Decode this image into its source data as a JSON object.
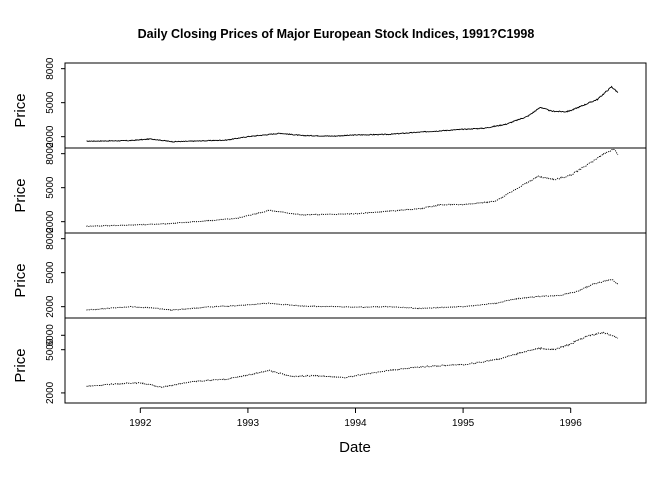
{
  "chart_data": {
    "type": "line",
    "title": "Daily Closing Prices of Major European Stock Indices, 1991?C1998",
    "xlabel": "Date",
    "x_ticks": [
      "1992",
      "1993",
      "1994",
      "1995",
      "1996"
    ],
    "x_tick_values": [
      1992,
      1993,
      1994,
      1995,
      1996
    ],
    "xlim": [
      1991.3,
      1996.7
    ],
    "panels": [
      {
        "ylabel": "Price",
        "ylim": [
          1000,
          8500
        ],
        "y_ticks": [
          "2000",
          "5000",
          "8000"
        ],
        "y_tick_values": [
          2000,
          5000,
          8000
        ],
        "line_style": "solid",
        "points": [
          [
            1991.5,
            1600
          ],
          [
            1991.9,
            1650
          ],
          [
            1992.1,
            1800
          ],
          [
            1992.3,
            1550
          ],
          [
            1992.8,
            1700
          ],
          [
            1993.0,
            2000
          ],
          [
            1993.3,
            2300
          ],
          [
            1993.5,
            2100
          ],
          [
            1993.8,
            2050
          ],
          [
            1994.0,
            2150
          ],
          [
            1994.3,
            2200
          ],
          [
            1994.6,
            2400
          ],
          [
            1995.0,
            2650
          ],
          [
            1995.2,
            2750
          ],
          [
            1995.4,
            3100
          ],
          [
            1995.6,
            3800
          ],
          [
            1995.72,
            4600
          ],
          [
            1995.82,
            4250
          ],
          [
            1995.95,
            4200
          ],
          [
            1996.0,
            4300
          ],
          [
            1996.1,
            4700
          ],
          [
            1996.25,
            5300
          ],
          [
            1996.38,
            6400
          ],
          [
            1996.44,
            5900
          ]
        ]
      },
      {
        "ylabel": "Price",
        "ylim": [
          1000,
          8500
        ],
        "y_ticks": [
          "2000",
          "5000",
          "8000"
        ],
        "y_tick_values": [
          2000,
          5000,
          8000
        ],
        "line_style": "dotted",
        "points": [
          [
            1991.5,
            1600
          ],
          [
            1991.9,
            1700
          ],
          [
            1992.2,
            1800
          ],
          [
            1992.6,
            2050
          ],
          [
            1992.9,
            2300
          ],
          [
            1993.2,
            3000
          ],
          [
            1993.5,
            2600
          ],
          [
            1993.8,
            2650
          ],
          [
            1994.0,
            2700
          ],
          [
            1994.3,
            2900
          ],
          [
            1994.6,
            3150
          ],
          [
            1994.8,
            3500
          ],
          [
            1995.0,
            3500
          ],
          [
            1995.3,
            3800
          ],
          [
            1995.55,
            5200
          ],
          [
            1995.7,
            6000
          ],
          [
            1995.85,
            5700
          ],
          [
            1996.0,
            6100
          ],
          [
            1996.2,
            7300
          ],
          [
            1996.35,
            8200
          ],
          [
            1996.4,
            8400
          ],
          [
            1996.44,
            7900
          ]
        ]
      },
      {
        "ylabel": "Price",
        "ylim": [
          1000,
          8500
        ],
        "y_ticks": [
          "2000",
          "5000",
          "8000"
        ],
        "y_tick_values": [
          2000,
          5000,
          8000
        ],
        "line_style": "dotted",
        "points": [
          [
            1991.5,
            1700
          ],
          [
            1991.9,
            2000
          ],
          [
            1992.1,
            1900
          ],
          [
            1992.3,
            1700
          ],
          [
            1992.6,
            1950
          ],
          [
            1992.9,
            2100
          ],
          [
            1993.2,
            2300
          ],
          [
            1993.5,
            2050
          ],
          [
            1993.8,
            2000
          ],
          [
            1994.0,
            1950
          ],
          [
            1994.3,
            2000
          ],
          [
            1994.6,
            1850
          ],
          [
            1995.0,
            2000
          ],
          [
            1995.3,
            2300
          ],
          [
            1995.5,
            2700
          ],
          [
            1995.7,
            2900
          ],
          [
            1995.9,
            3000
          ],
          [
            1996.05,
            3300
          ],
          [
            1996.2,
            3950
          ],
          [
            1996.38,
            4400
          ],
          [
            1996.44,
            4000
          ]
        ]
      },
      {
        "ylabel": "Price",
        "ylim": [
          1300,
          7200
        ],
        "y_ticks": [
          "2000",
          "5000",
          "6000"
        ],
        "y_tick_values": [
          2000,
          5000,
          6000
        ],
        "line_style": "dotted",
        "points": [
          [
            1991.5,
            2450
          ],
          [
            1991.8,
            2650
          ],
          [
            1992.0,
            2700
          ],
          [
            1992.2,
            2400
          ],
          [
            1992.5,
            2800
          ],
          [
            1992.8,
            2950
          ],
          [
            1993.0,
            3250
          ],
          [
            1993.2,
            3550
          ],
          [
            1993.4,
            3150
          ],
          [
            1993.6,
            3200
          ],
          [
            1993.9,
            3050
          ],
          [
            1994.0,
            3200
          ],
          [
            1994.3,
            3550
          ],
          [
            1994.6,
            3800
          ],
          [
            1994.9,
            3950
          ],
          [
            1995.0,
            3950
          ],
          [
            1995.3,
            4300
          ],
          [
            1995.5,
            4700
          ],
          [
            1995.7,
            5100
          ],
          [
            1995.85,
            5000
          ],
          [
            1996.0,
            5400
          ],
          [
            1996.15,
            5950
          ],
          [
            1996.3,
            6200
          ],
          [
            1996.44,
            5800
          ]
        ]
      }
    ]
  }
}
